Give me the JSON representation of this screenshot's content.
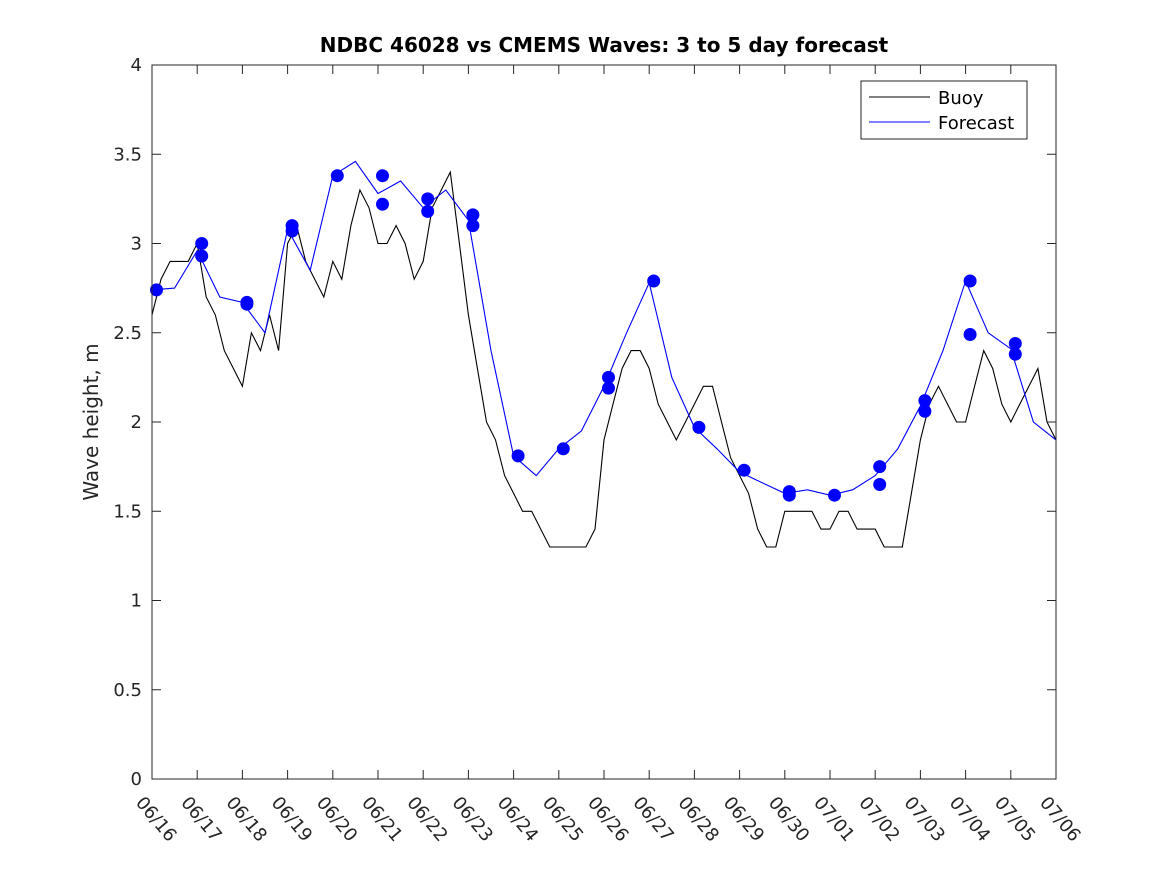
{
  "chart_data": {
    "type": "line",
    "title": "NDBC 46028 vs CMEMS Waves: 3 to 5 day forecast",
    "xlabel": "",
    "ylabel": "Wave height, m",
    "xlim": [
      "06/16",
      "07/06"
    ],
    "ylim": [
      0,
      4
    ],
    "y_ticks": [
      "0",
      "0.5",
      "1",
      "1.5",
      "2",
      "2.5",
      "3",
      "3.5",
      "4"
    ],
    "x_ticks": [
      "06/16",
      "06/17",
      "06/18",
      "06/19",
      "06/20",
      "06/21",
      "06/22",
      "06/23",
      "06/24",
      "06/25",
      "06/26",
      "06/27",
      "06/28",
      "06/29",
      "06/30",
      "07/01",
      "07/02",
      "07/03",
      "07/04",
      "07/05",
      "07/06"
    ],
    "grid": false,
    "legend_position": "top-right",
    "legend": [
      {
        "label": "Buoy",
        "color": "#000000"
      },
      {
        "label": "Forecast",
        "color": "#0000ff"
      }
    ],
    "series": [
      {
        "name": "Buoy",
        "color": "#000000",
        "x": [
          0.0,
          0.2,
          0.4,
          0.6,
          0.8,
          1.0,
          1.2,
          1.4,
          1.6,
          1.8,
          2.0,
          2.2,
          2.4,
          2.6,
          2.8,
          3.0,
          3.2,
          3.4,
          3.6,
          3.8,
          4.0,
          4.2,
          4.4,
          4.6,
          4.8,
          5.0,
          5.2,
          5.4,
          5.6,
          5.8,
          6.0,
          6.2,
          6.4,
          6.6,
          6.8,
          7.0,
          7.2,
          7.4,
          7.6,
          7.8,
          8.0,
          8.2,
          8.4,
          8.6,
          8.8,
          9.0,
          9.2,
          9.4,
          9.6,
          9.8,
          10.0,
          10.2,
          10.4,
          10.6,
          10.8,
          11.0,
          11.2,
          11.4,
          11.6,
          11.8,
          12.0,
          12.2,
          12.4,
          12.6,
          12.8,
          13.0,
          13.2,
          13.4,
          13.6,
          13.8,
          14.0,
          14.2,
          14.4,
          14.6,
          14.8,
          15.0,
          15.2,
          15.4,
          15.6,
          15.8,
          16.0,
          16.2,
          16.4,
          16.6,
          16.8,
          17.0,
          17.2,
          17.4,
          17.6,
          17.8,
          18.0,
          18.2,
          18.4,
          18.6,
          18.8,
          19.0,
          19.2,
          19.4,
          19.6,
          19.8,
          20.0
        ],
        "values": [
          2.6,
          2.8,
          2.9,
          2.9,
          2.9,
          3.0,
          2.7,
          2.6,
          2.4,
          2.3,
          2.2,
          2.5,
          2.4,
          2.6,
          2.4,
          3.0,
          3.1,
          2.9,
          2.8,
          2.7,
          2.9,
          2.8,
          3.1,
          3.3,
          3.2,
          3.0,
          3.0,
          3.1,
          3.0,
          2.8,
          2.9,
          3.2,
          3.3,
          3.4,
          3.0,
          2.6,
          2.3,
          2.0,
          1.9,
          1.7,
          1.6,
          1.5,
          1.5,
          1.4,
          1.3,
          1.3,
          1.3,
          1.3,
          1.3,
          1.4,
          1.9,
          2.1,
          2.3,
          2.4,
          2.4,
          2.3,
          2.1,
          2.0,
          1.9,
          2.0,
          2.1,
          2.2,
          2.2,
          2.0,
          1.8,
          1.7,
          1.6,
          1.4,
          1.3,
          1.3,
          1.5,
          1.5,
          1.5,
          1.5,
          1.4,
          1.4,
          1.5,
          1.5,
          1.4,
          1.4,
          1.4,
          1.3,
          1.3,
          1.3,
          1.6,
          1.9,
          2.1,
          2.2,
          2.1,
          2.0,
          2.0,
          2.2,
          2.4,
          2.3,
          2.1,
          2.0,
          2.1,
          2.2,
          2.3,
          2.0,
          1.9
        ]
      },
      {
        "name": "Forecast",
        "color": "#0000ff",
        "x": [
          0.0,
          0.5,
          1.0,
          1.5,
          2.0,
          2.5,
          3.0,
          3.5,
          4.0,
          4.5,
          5.0,
          5.5,
          6.0,
          6.5,
          7.0,
          7.5,
          8.0,
          8.5,
          9.0,
          9.5,
          10.0,
          10.5,
          11.0,
          11.5,
          12.0,
          12.5,
          13.0,
          13.5,
          14.0,
          14.5,
          15.0,
          15.5,
          16.0,
          16.5,
          17.0,
          17.5,
          18.0,
          18.5,
          19.0,
          19.5,
          20.0
        ],
        "values": [
          2.74,
          2.75,
          2.96,
          2.7,
          2.67,
          2.5,
          3.08,
          2.85,
          3.38,
          3.46,
          3.28,
          3.35,
          3.2,
          3.3,
          3.13,
          2.4,
          1.81,
          1.7,
          1.85,
          1.95,
          2.2,
          2.5,
          2.78,
          2.25,
          1.97,
          1.85,
          1.72,
          1.66,
          1.6,
          1.62,
          1.59,
          1.62,
          1.7,
          1.85,
          2.09,
          2.4,
          2.79,
          2.5,
          2.41,
          2.0,
          1.9
        ]
      }
    ],
    "forecast_markers": {
      "x": [
        0.1,
        1.1,
        1.1,
        2.1,
        2.1,
        3.1,
        3.1,
        4.1,
        5.1,
        5.1,
        6.1,
        6.1,
        7.1,
        7.1,
        8.1,
        9.1,
        10.1,
        10.1,
        11.1,
        12.1,
        13.1,
        14.1,
        14.1,
        15.1,
        16.1,
        16.1,
        17.1,
        17.1,
        18.1,
        18.1,
        19.1,
        19.1
      ],
      "values": [
        2.74,
        3.0,
        2.93,
        2.67,
        2.66,
        3.1,
        3.07,
        3.38,
        3.38,
        3.22,
        3.25,
        3.18,
        3.16,
        3.1,
        1.81,
        1.85,
        2.25,
        2.19,
        2.79,
        1.97,
        1.73,
        1.61,
        1.59,
        1.59,
        1.75,
        1.65,
        2.12,
        2.06,
        2.79,
        2.49,
        2.44,
        2.38
      ],
      "color": "#0000ff"
    }
  }
}
